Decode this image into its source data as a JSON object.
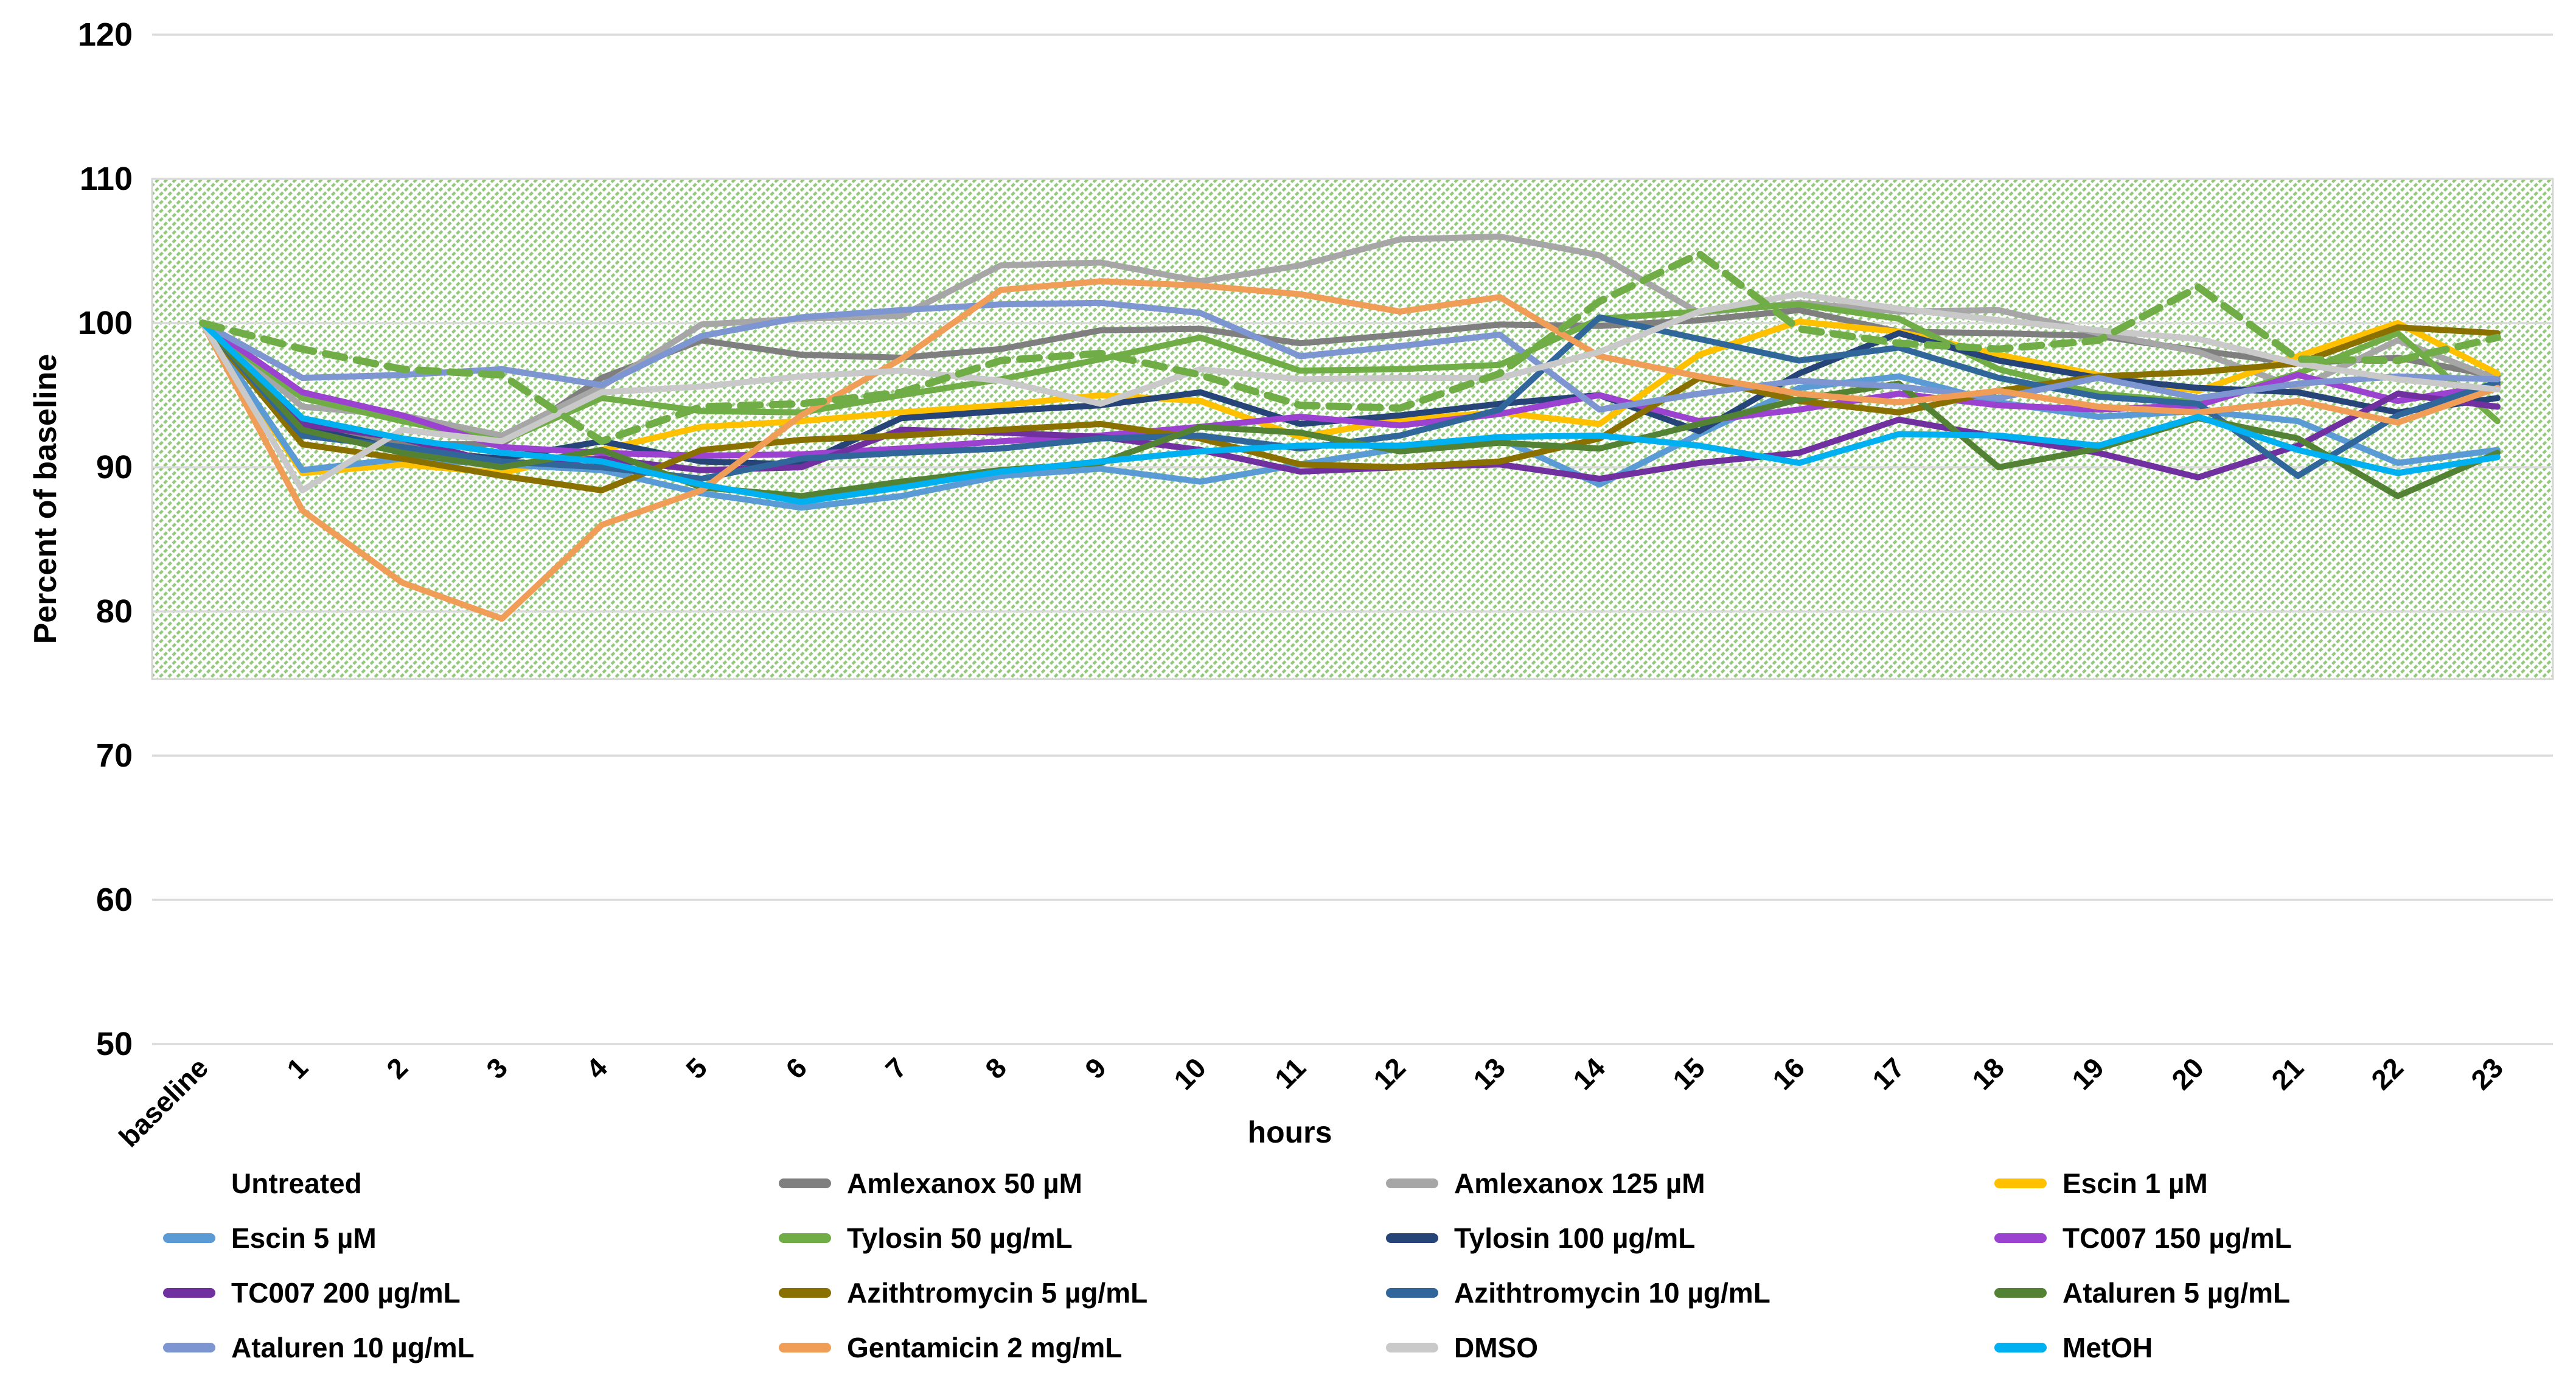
{
  "page": {
    "background": "#ffffff"
  },
  "chart_data": {
    "type": "line",
    "title": "",
    "xlabel": "hours",
    "ylabel": "Percent of baseline",
    "x_categories": [
      "baseline",
      "1",
      "2",
      "3",
      "4",
      "5",
      "6",
      "7",
      "8",
      "9",
      "10",
      "11",
      "12",
      "13",
      "14",
      "15",
      "16",
      "17",
      "18",
      "19",
      "20",
      "21",
      "22",
      "23"
    ],
    "ylim": [
      50,
      120
    ],
    "ytick_step": 10,
    "yticks": [
      50,
      60,
      70,
      80,
      90,
      100,
      110,
      120
    ],
    "grid": true,
    "gridline_color": "#d9d9d9",
    "reference_band": {
      "ymin": 75.3,
      "ymax": 110,
      "style": "green-diagonal-hatch",
      "color": "#94c97d",
      "border_color": "#d6d6d6"
    },
    "legend_position": "bottom",
    "legend_columns": 4,
    "series": [
      {
        "name": "Untreated",
        "color": "#70ad47",
        "dashed": true,
        "values": [
          100,
          98.2,
          96.8,
          96.4,
          91.8,
          94.2,
          94.4,
          95.2,
          97.4,
          97.9,
          96.4,
          94.3,
          94.1,
          96.5,
          101.5,
          104.8,
          99.6,
          98.6,
          98.2,
          98.8,
          102.5,
          97.5,
          97.4,
          99.0
        ]
      },
      {
        "name": "Amlexanox 50 µM",
        "color": "#7f7f7f",
        "dashed": false,
        "values": [
          100,
          93.2,
          91.6,
          91.6,
          96.2,
          98.8,
          97.8,
          97.6,
          98.2,
          99.5,
          99.6,
          98.6,
          99.2,
          99.9,
          99.8,
          100.2,
          100.9,
          99.4,
          99.3,
          99.1,
          98.1,
          97.2,
          97.6,
          96.3
        ]
      },
      {
        "name": "Amlexanox 125 µM",
        "color": "#a6a6a6",
        "dashed": false,
        "values": [
          100,
          94.2,
          93.6,
          92.2,
          95.6,
          99.9,
          100.3,
          100.5,
          104.0,
          104.2,
          102.9,
          104.0,
          105.8,
          106.0,
          104.7,
          100.7,
          101.4,
          100.8,
          100.9,
          99.3,
          98.0,
          95.5,
          98.8,
          96.1
        ]
      },
      {
        "name": "Escin 1 µM",
        "color": "#ffc000",
        "dashed": false,
        "values": [
          100,
          89.6,
          90.2,
          89.6,
          91.2,
          92.8,
          93.2,
          93.8,
          94.3,
          95.0,
          94.6,
          92.1,
          93.3,
          93.8,
          93.0,
          97.8,
          100.1,
          99.4,
          97.8,
          96.4,
          95.3,
          97.7,
          100.0,
          96.5
        ]
      },
      {
        "name": "Escin 5 µM",
        "color": "#5b9bd5",
        "dashed": false,
        "values": [
          100,
          89.8,
          90.6,
          90.2,
          89.8,
          88.2,
          87.2,
          88.0,
          89.4,
          89.9,
          89.0,
          90.2,
          91.3,
          92.0,
          88.8,
          92.3,
          95.5,
          96.3,
          94.5,
          93.5,
          93.9,
          93.2,
          90.3,
          91.2
        ]
      },
      {
        "name": "Tylosin 50 µg/mL",
        "color": "#70ad47",
        "dashed": false,
        "values": [
          100,
          94.8,
          93.2,
          91.8,
          94.8,
          93.9,
          93.8,
          95.0,
          96.1,
          97.5,
          99.0,
          96.7,
          96.8,
          97.1,
          100.3,
          100.8,
          101.3,
          100.3,
          96.8,
          95.1,
          94.5,
          96.5,
          99.3,
          93.2
        ]
      },
      {
        "name": "Tylosin 100 µg/mL",
        "color": "#264478",
        "dashed": false,
        "values": [
          100,
          92.8,
          91.2,
          90.6,
          91.8,
          90.4,
          90.2,
          93.4,
          93.9,
          94.3,
          95.2,
          93.0,
          93.6,
          94.4,
          95.0,
          92.5,
          96.5,
          99.3,
          97.4,
          96.2,
          95.5,
          95.2,
          93.8,
          94.8
        ]
      },
      {
        "name": "TC007 150 µg/mL",
        "color": "#9b43d0",
        "dashed": false,
        "values": [
          100,
          95.2,
          93.6,
          91.4,
          91.0,
          90.8,
          90.9,
          91.3,
          91.8,
          92.2,
          92.8,
          93.5,
          92.9,
          93.7,
          95.0,
          93.2,
          94.0,
          95.1,
          94.3,
          94.0,
          94.3,
          96.4,
          94.6,
          95.7
        ]
      },
      {
        "name": "TC007 200 µg/mL",
        "color": "#7030a0",
        "dashed": false,
        "values": [
          100,
          93.0,
          92.0,
          90.2,
          90.6,
          89.8,
          90.0,
          92.6,
          92.4,
          92.1,
          91.2,
          89.7,
          90.0,
          90.2,
          89.2,
          90.3,
          91.0,
          93.3,
          92.1,
          91.0,
          89.3,
          91.5,
          95.1,
          94.2
        ]
      },
      {
        "name": "Azithtromycin 5 µg/mL",
        "color": "#8a7000",
        "dashed": false,
        "values": [
          100,
          91.6,
          90.6,
          89.4,
          88.4,
          91.2,
          91.9,
          92.2,
          92.6,
          93.0,
          92.0,
          90.2,
          90.0,
          90.4,
          92.0,
          96.2,
          94.6,
          93.8,
          95.3,
          96.3,
          96.6,
          97.2,
          99.7,
          99.3
        ]
      },
      {
        "name": "Azithtromycin 10 µg/mL",
        "color": "#31669b",
        "dashed": false,
        "values": [
          100,
          92.2,
          91.4,
          90.4,
          90.0,
          89.2,
          90.6,
          91.0,
          91.3,
          92.0,
          92.2,
          91.3,
          92.2,
          94.0,
          100.4,
          98.9,
          97.4,
          98.3,
          96.2,
          94.9,
          94.4,
          89.4,
          93.6,
          95.9
        ]
      },
      {
        "name": "Ataluren 5 µg/mL",
        "color": "#548235",
        "dashed": false,
        "values": [
          100,
          92.6,
          91.0,
          90.0,
          91.2,
          88.6,
          88.0,
          89.0,
          89.8,
          90.3,
          92.8,
          92.4,
          91.1,
          91.7,
          91.3,
          93.0,
          94.7,
          95.8,
          90.0,
          91.3,
          93.4,
          92.0,
          88.0,
          91.0
        ]
      },
      {
        "name": "Ataluren 10 µg/mL",
        "color": "#7d96d2",
        "dashed": false,
        "values": [
          100,
          96.2,
          96.4,
          96.8,
          95.7,
          99.1,
          100.4,
          100.9,
          101.3,
          101.4,
          100.7,
          97.7,
          98.4,
          99.2,
          94.0,
          95.1,
          96.0,
          95.6,
          94.8,
          96.2,
          94.8,
          95.8,
          96.3,
          96.1
        ]
      },
      {
        "name": "Gentamicin 2 mg/mL",
        "color": "#f09d58",
        "dashed": false,
        "values": [
          100,
          87.0,
          82.0,
          79.5,
          86.0,
          88.4,
          93.6,
          97.5,
          102.3,
          102.9,
          102.6,
          102.0,
          100.8,
          101.8,
          97.7,
          96.3,
          95.1,
          94.5,
          95.3,
          94.2,
          93.8,
          94.6,
          93.1,
          95.5
        ]
      },
      {
        "name": "DMSO",
        "color": "#c9c9c9",
        "dashed": false,
        "values": [
          100,
          88.4,
          92.6,
          91.8,
          95.2,
          95.6,
          96.3,
          96.7,
          96.0,
          94.4,
          96.8,
          96.1,
          96.2,
          96.2,
          98.0,
          100.8,
          102.0,
          101.0,
          100.2,
          99.5,
          98.9,
          97.2,
          96.1,
          95.4
        ]
      },
      {
        "name": "MetOH",
        "color": "#00b0f0",
        "dashed": false,
        "values": [
          100,
          93.4,
          92.0,
          91.0,
          90.4,
          88.8,
          87.6,
          88.6,
          89.7,
          90.4,
          91.1,
          91.5,
          91.5,
          92.1,
          92.2,
          91.5,
          90.3,
          92.3,
          92.2,
          91.5,
          93.5,
          91.2,
          89.6,
          90.7
        ]
      }
    ]
  }
}
